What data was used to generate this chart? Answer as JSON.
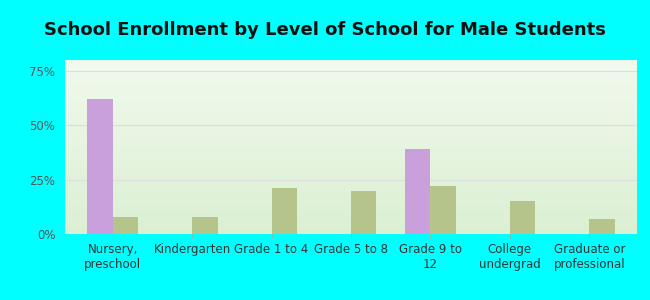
{
  "title": "School Enrollment by Level of School for Male Students",
  "categories": [
    "Nursery,\npreschool",
    "Kindergarten",
    "Grade 1 to 4",
    "Grade 5 to 8",
    "Grade 9 to\n12",
    "College\nundergrad",
    "Graduate or\nprofessional"
  ],
  "ducktown": [
    62,
    0,
    0,
    0,
    39,
    0,
    0
  ],
  "tennessee": [
    8,
    8,
    21,
    20,
    22,
    15,
    7
  ],
  "ducktown_color": "#c9a0dc",
  "tennessee_color": "#b5c48a",
  "bar_width": 0.32,
  "ylim": [
    0,
    80
  ],
  "yticks": [
    0,
    25,
    50,
    75
  ],
  "yticklabels": [
    "0%",
    "25%",
    "50%",
    "75%"
  ],
  "bg_color": "#00ffff",
  "grid_color": "#dddddd",
  "title_fontsize": 13,
  "tick_fontsize": 8.5,
  "legend_fontsize": 9.5
}
